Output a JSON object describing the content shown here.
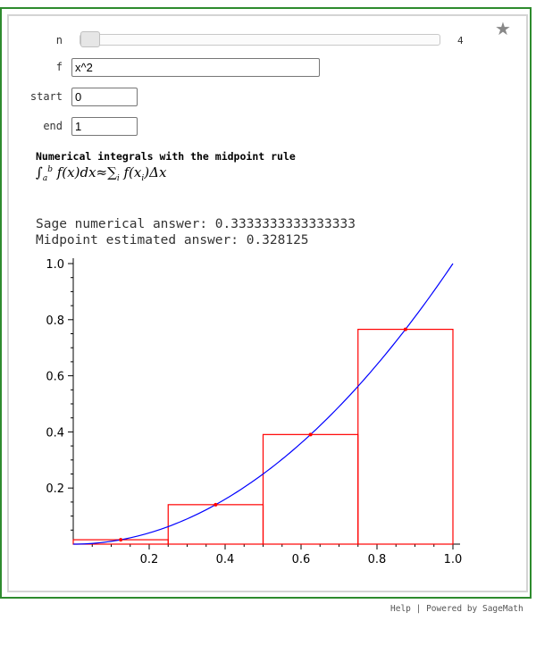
{
  "controls": {
    "n": {
      "label": "n",
      "value": "4",
      "slider_fraction": 0.0
    },
    "f": {
      "label": "f",
      "value": "x^2"
    },
    "start": {
      "label": "start",
      "value": "0"
    },
    "end": {
      "label": "end",
      "value": "1"
    }
  },
  "output": {
    "title": "Numerical integrals with the midpoint rule",
    "formula": {
      "lower": "a",
      "upper": "b",
      "fx": "f(x)dx",
      "approx": "≈",
      "sum": "∑",
      "sum_sub": "i",
      "fxi": "f(x",
      "fxi_sub": "i",
      "fxi_tail": ")Δx"
    },
    "sage_answer_line": "Sage numerical answer: 0.3333333333333333",
    "midpoint_answer_line": "Midpoint estimated answer: 0.328125"
  },
  "star_icon": "star-icon",
  "footer": {
    "help": "Help",
    "sep": " | ",
    "powered": "Powered by SageMath"
  },
  "colors": {
    "curve": "#0000ff",
    "rects": "#ff0000",
    "frame": "#2e8b2e"
  },
  "chart_data": {
    "type": "line",
    "function": "x^2",
    "curve": {
      "x": [
        0,
        0.1,
        0.2,
        0.3,
        0.4,
        0.5,
        0.6,
        0.7,
        0.8,
        0.9,
        1.0
      ],
      "y": [
        0,
        0.01,
        0.04,
        0.09,
        0.16,
        0.25,
        0.36,
        0.49,
        0.64,
        0.81,
        1.0
      ]
    },
    "rectangles": [
      {
        "x0": 0.0,
        "x1": 0.25,
        "height": 0.015625
      },
      {
        "x0": 0.25,
        "x1": 0.5,
        "height": 0.140625
      },
      {
        "x0": 0.5,
        "x1": 0.75,
        "height": 0.390625
      },
      {
        "x0": 0.75,
        "x1": 1.0,
        "height": 0.765625
      }
    ],
    "midpoints": {
      "x": [
        0.125,
        0.375,
        0.625,
        0.875
      ],
      "y": [
        0.015625,
        0.140625,
        0.390625,
        0.765625
      ]
    },
    "xticks": [
      "0.2",
      "0.4",
      "0.6",
      "0.8",
      "1.0"
    ],
    "xtick_values": [
      0.2,
      0.4,
      0.6,
      0.8,
      1.0
    ],
    "yticks": [
      "0.2",
      "0.4",
      "0.6",
      "0.8",
      "1.0"
    ],
    "ytick_values": [
      0.2,
      0.4,
      0.6,
      0.8,
      1.0
    ],
    "xlim": [
      0,
      1
    ],
    "ylim": [
      0,
      1
    ],
    "grid": false,
    "title": "",
    "xlabel": "",
    "ylabel": ""
  }
}
